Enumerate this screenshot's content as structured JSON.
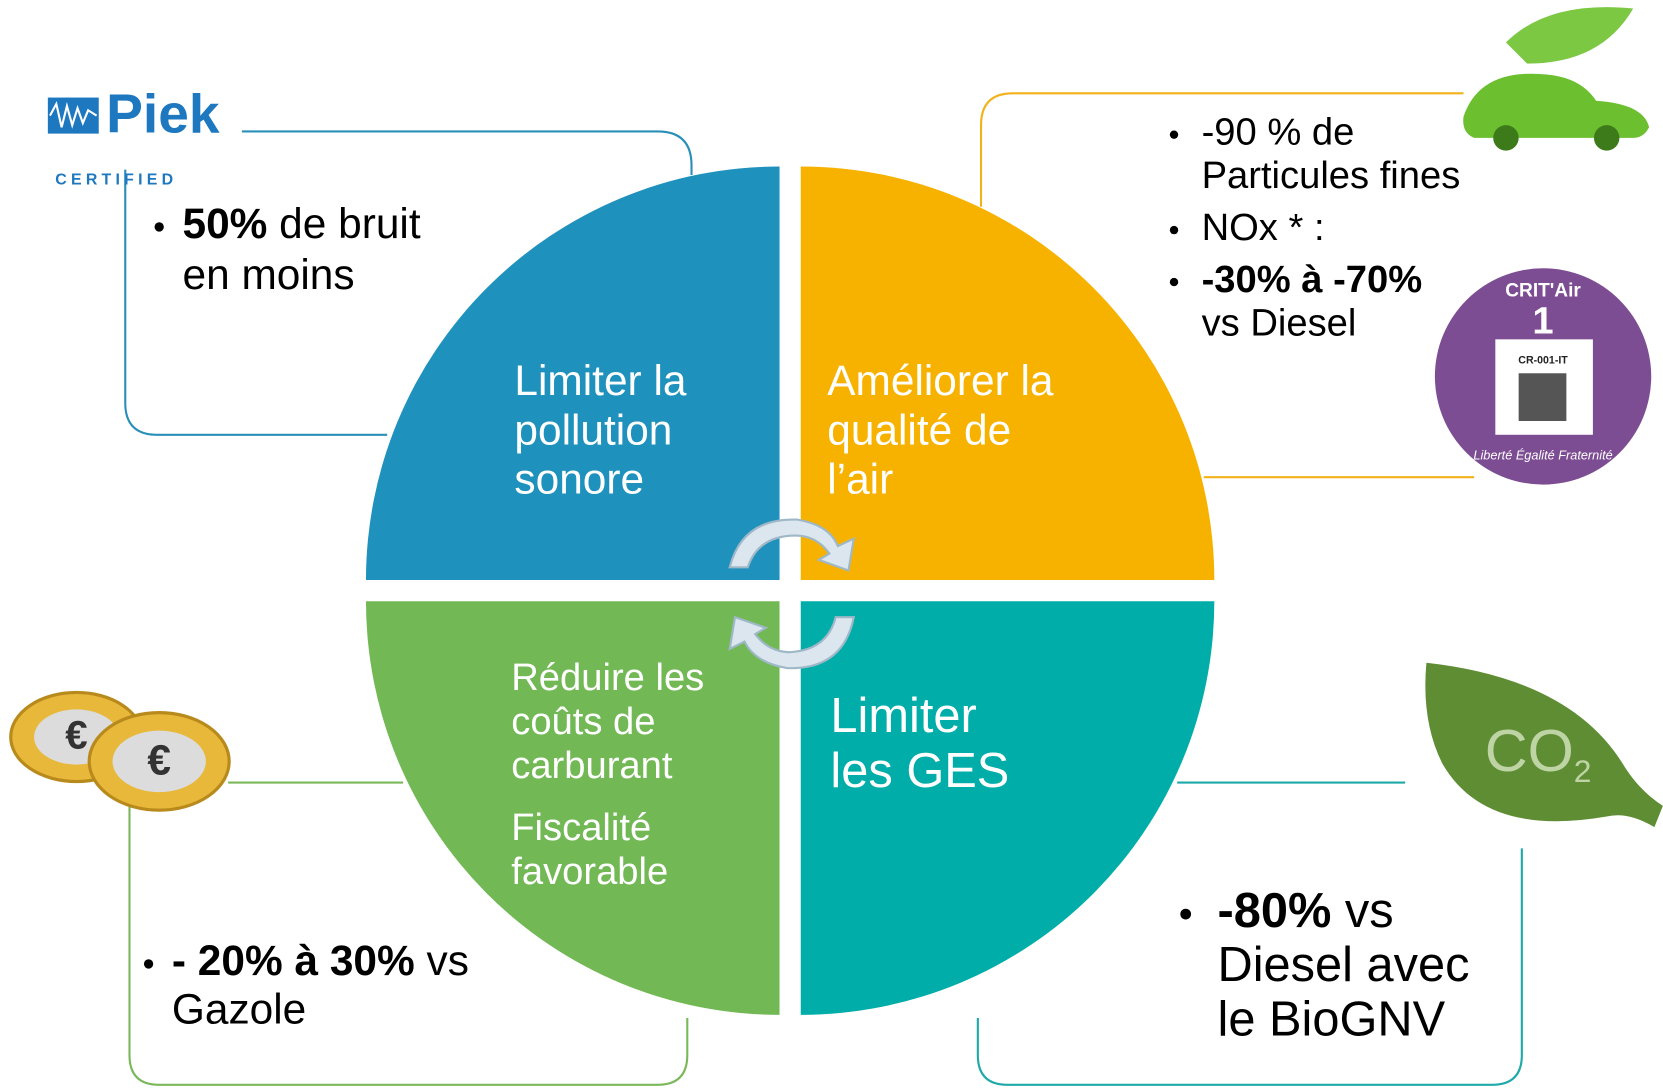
{
  "quadrants": [
    {
      "lines": [
        "Limiter la",
        "pollution",
        "sonore"
      ]
    },
    {
      "lines": [
        "Améliorer la",
        "qualité de",
        "l’air"
      ]
    },
    {
      "lines": [
        "Réduire les",
        "coûts de",
        "carburant",
        "Fiscalité",
        "favorable"
      ]
    },
    {
      "lines": [
        "Limiter",
        "les GES"
      ]
    }
  ],
  "callouts": [
    {
      "bullets": [
        {
          "lines": [
            [
              {
                "text": "50%",
                "bold": true
              },
              {
                "text": " de bruit"
              }
            ],
            [
              {
                "text": "en moins"
              }
            ]
          ]
        }
      ]
    },
    {
      "bullets": [
        {
          "lines": [
            [
              {
                "text": "-90 % de"
              }
            ],
            [
              {
                "text": "Particules fines"
              }
            ]
          ]
        },
        {
          "lines": [
            [
              {
                "text": "NOx * :"
              }
            ]
          ]
        },
        {
          "lines": [
            [
              {
                "text": "-30% à -70%",
                "bold": true
              }
            ],
            [
              {
                "text": "vs Diesel"
              }
            ]
          ]
        }
      ]
    },
    {
      "bullets": [
        {
          "lines": [
            [
              {
                "text": "- 20% à 30%",
                "bold": true
              },
              {
                "text": " vs"
              }
            ],
            [
              {
                "text": "Gazole"
              }
            ]
          ]
        }
      ]
    },
    {
      "bullets": [
        {
          "lines": [
            [
              {
                "text": "-80%",
                "bold": true
              },
              {
                "text": " vs"
              }
            ],
            [
              {
                "text": "Diesel avec"
              }
            ],
            [
              {
                "text": "le BioGNV"
              }
            ]
          ]
        }
      ]
    }
  ],
  "logos": {
    "piek": {
      "name": "Piek",
      "caption": "CERTIFIED"
    },
    "critair": {
      "title": "CRIT'Air",
      "class": "1",
      "code": "CR-001-IT",
      "motto": "Liberté Égalité Fraternité"
    },
    "co2": {
      "text": "CO",
      "sub": "2"
    },
    "coins": [
      "€",
      "€"
    ]
  }
}
